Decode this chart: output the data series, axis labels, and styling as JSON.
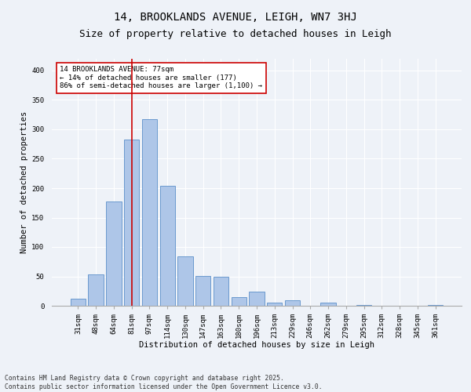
{
  "title1": "14, BROOKLANDS AVENUE, LEIGH, WN7 3HJ",
  "title2": "Size of property relative to detached houses in Leigh",
  "xlabel": "Distribution of detached houses by size in Leigh",
  "ylabel": "Number of detached properties",
  "categories": [
    "31sqm",
    "48sqm",
    "64sqm",
    "81sqm",
    "97sqm",
    "114sqm",
    "130sqm",
    "147sqm",
    "163sqm",
    "180sqm",
    "196sqm",
    "213sqm",
    "229sqm",
    "246sqm",
    "262sqm",
    "279sqm",
    "295sqm",
    "312sqm",
    "328sqm",
    "345sqm",
    "361sqm"
  ],
  "values": [
    12,
    54,
    177,
    283,
    317,
    204,
    84,
    51,
    50,
    15,
    24,
    6,
    9,
    0,
    5,
    0,
    2,
    0,
    0,
    0,
    2
  ],
  "bar_color": "#aec6e8",
  "bar_edge_color": "#5b8fc9",
  "vline_x": 3,
  "vline_color": "#cc0000",
  "annotation_text": "14 BROOKLANDS AVENUE: 77sqm\n← 14% of detached houses are smaller (177)\n86% of semi-detached houses are larger (1,100) →",
  "annotation_box_color": "#ffffff",
  "annotation_box_edge": "#cc0000",
  "footnote": "Contains HM Land Registry data © Crown copyright and database right 2025.\nContains public sector information licensed under the Open Government Licence v3.0.",
  "ylim": [
    0,
    420
  ],
  "yticks": [
    0,
    50,
    100,
    150,
    200,
    250,
    300,
    350,
    400
  ],
  "bg_color": "#eef2f8",
  "grid_color": "#ffffff",
  "title_fontsize": 10,
  "subtitle_fontsize": 9,
  "axis_label_fontsize": 7.5,
  "tick_fontsize": 6.5,
  "annotation_fontsize": 6.5,
  "footnote_fontsize": 5.8
}
